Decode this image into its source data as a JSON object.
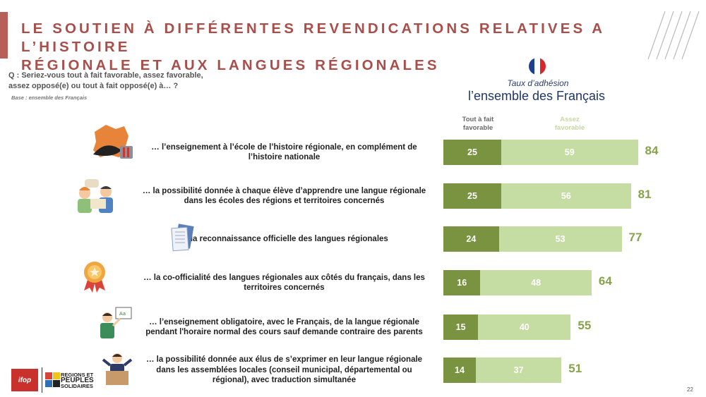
{
  "title_line1": "LE SOUTIEN À DIFFÉRENTES REVENDICATIONS RELATIVES A L’HISTOIRE",
  "title_line2": "RÉGIONALE ET AUX LANGUES RÉGIONALES",
  "question_line1": "Q : Seriez-vous tout à fait favorable, assez favorable,",
  "question_line2": "assez opposé(e) ou tout à fait opposé(e) à… ?",
  "base": "Base : ensemble des Français",
  "taux_label": "Taux d’adhésion",
  "group_label": "l’ensemble des Français",
  "legend": {
    "strong_line1": "Tout à fait",
    "strong_line2": "favorable",
    "weak_line1": "Assez",
    "weak_line2": "favorable"
  },
  "colors": {
    "strong": "#7a9340",
    "weak": "#c5dca2",
    "total": "#86a34a",
    "title": "#a84f4b"
  },
  "chart_data": {
    "type": "bar",
    "orientation": "horizontal",
    "stacked": true,
    "categories": [
      "… l’enseignement à l’école de l’histoire régionale, en complément de l’histoire nationale",
      "… la possibilité donnée à chaque élève d’apprendre une langue régionale dans les écoles des régions et territoires concernés",
      "… la reconnaissance officielle des langues régionales",
      "… la co-officialité des langues régionales aux côtés du français, dans les territoires concernés",
      "… l’enseignement obligatoire, avec le Français, de la langue régionale pendant l'horaire normal des cours sauf demande contraire des parents",
      "… la possibilité donnée aux élus de s’exprimer en leur langue régionale dans les assemblées locales (conseil municipal, départemental ou régional), avec traduction simultanée"
    ],
    "series": [
      {
        "name": "Tout à fait favorable",
        "values": [
          25,
          25,
          24,
          16,
          15,
          14
        ]
      },
      {
        "name": "Assez favorable",
        "values": [
          59,
          56,
          53,
          48,
          40,
          37
        ]
      }
    ],
    "totals": [
      84,
      81,
      77,
      64,
      55,
      51
    ]
  },
  "rows": [
    {
      "line1": "… l’enseignement à l’école de l’histoire régionale, en complément de",
      "line2": "l’histoire nationale",
      "line3": ""
    },
    {
      "line1": "… la possibilité donnée à chaque élève d’apprendre une langue régionale",
      "line2": "dans les écoles des régions et territoires concernés",
      "line3": ""
    },
    {
      "line1": "… la reconnaissance officielle des langues régionales",
      "line2": "",
      "line3": ""
    },
    {
      "line1": "… la co-officialité des langues régionales aux côtés du français, dans les",
      "line2": "territoires concernés",
      "line3": ""
    },
    {
      "line1": "… l’enseignement obligatoire, avec le Français, de la langue régionale",
      "line2": "pendant l'horaire normal des cours sauf demande contraire des parents",
      "line3": ""
    },
    {
      "line1": "… la possibilité donnée aux élus de s’exprimer en leur langue régionale",
      "line2": "dans les assemblées locales (conseil municipal, départemental ou",
      "line3": "régional), avec traduction simultanée"
    }
  ],
  "logos": {
    "ifop": "ifop",
    "rps_line1": "REGIONS ET",
    "rps_line2": "PEUPLES",
    "rps_line3": "SOLIDAIRES"
  },
  "page_number": "22"
}
